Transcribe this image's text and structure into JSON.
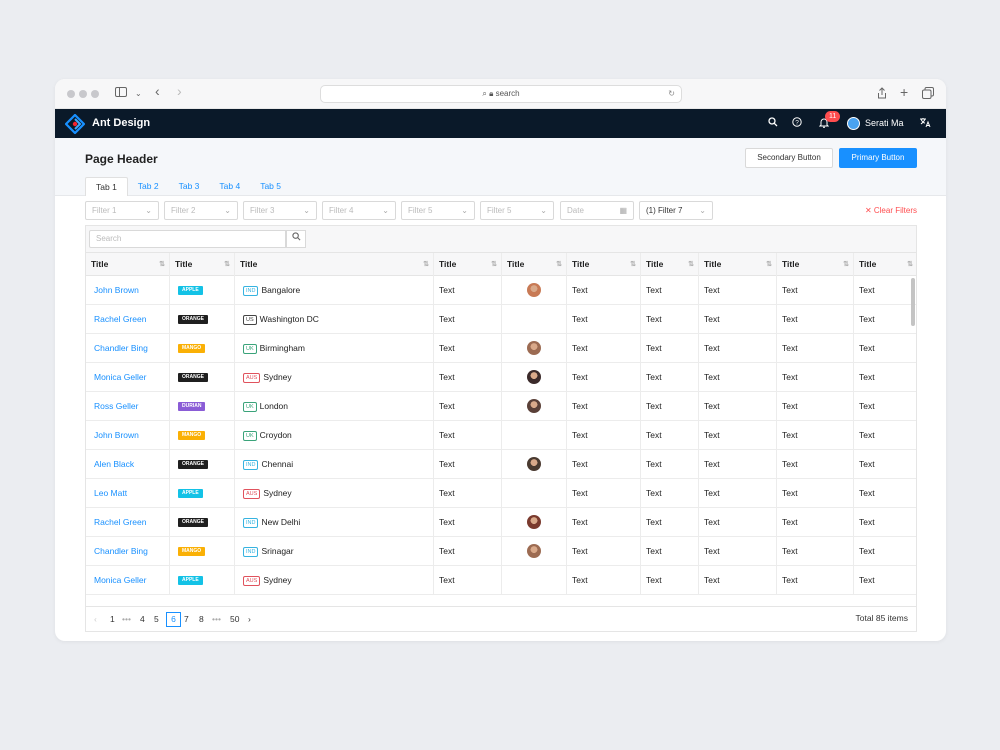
{
  "browser": {
    "url_text": "search",
    "nav_back": "‹",
    "nav_forward": "›"
  },
  "app": {
    "brand": "Ant Design",
    "notification_count": "11",
    "username": "Serati Ma",
    "colors": {
      "appbar": "#0a1929",
      "primary": "#1890ff",
      "danger": "#ff4d4f"
    }
  },
  "header": {
    "title": "Page Header",
    "secondary_button": "Secondary Button",
    "primary_button": "Primary Button",
    "tabs": [
      {
        "label": "Tab 1",
        "active": true
      },
      {
        "label": "Tab 2",
        "active": false
      },
      {
        "label": "Tab 3",
        "active": false
      },
      {
        "label": "Tab 4",
        "active": false
      },
      {
        "label": "Tab 5",
        "active": false
      }
    ]
  },
  "filters": {
    "items": [
      "Filter 1",
      "Filter 2",
      "Filter 3",
      "Filter 4",
      "Filter 5",
      "Filter 5",
      "Date",
      "(1) Filter 7"
    ],
    "clear_label": "Clear Filters"
  },
  "table": {
    "search_placeholder": "Search",
    "headers": [
      "Title",
      "Title",
      "Title",
      "Title",
      "Title",
      "Title",
      "Title",
      "Title",
      "Title",
      "Title"
    ],
    "rows": [
      {
        "name": "John Brown",
        "fruit": "APPLE",
        "country": "IND",
        "city": "Bangalore",
        "text": "Text",
        "avatar": true
      },
      {
        "name": "Rachel Green",
        "fruit": "ORANGE",
        "country": "US",
        "city": "Washington DC",
        "text": "Text",
        "avatar": false
      },
      {
        "name": "Chandler Bing",
        "fruit": "MANGO",
        "country": "UK",
        "city": "Birmingham",
        "text": "Text",
        "avatar": true
      },
      {
        "name": "Monica Geller",
        "fruit": "ORANGE",
        "country": "AUS",
        "city": "Sydney",
        "text": "Text",
        "avatar": true
      },
      {
        "name": "Ross Geller",
        "fruit": "DURIAN",
        "country": "UK",
        "city": "London",
        "text": "Text",
        "avatar": true
      },
      {
        "name": "John Brown",
        "fruit": "MANGO",
        "country": "UK",
        "city": "Croydon",
        "text": "Text",
        "avatar": false
      },
      {
        "name": "Alen Black",
        "fruit": "ORANGE",
        "country": "IND",
        "city": "Chennai",
        "text": "Text",
        "avatar": true
      },
      {
        "name": "Leo Matt",
        "fruit": "APPLE",
        "country": "AUS",
        "city": "Sydney",
        "text": "Text",
        "avatar": false
      },
      {
        "name": "Rachel Green",
        "fruit": "ORANGE",
        "country": "IND",
        "city": "New Delhi",
        "text": "Text",
        "avatar": true
      },
      {
        "name": "Chandler Bing",
        "fruit": "MANGO",
        "country": "IND",
        "city": "Srinagar",
        "text": "Text",
        "avatar": true
      },
      {
        "name": "Monica Geller",
        "fruit": "APPLE",
        "country": "AUS",
        "city": "Sydney",
        "text": "Text",
        "avatar": false
      }
    ],
    "fruit_colors": {
      "APPLE": "#13c2e6",
      "ORANGE": "#1f1f1f",
      "MANGO": "#fab005",
      "DURIAN": "#8a5cd6"
    },
    "country_colors": {
      "IND": "#36b3e0",
      "US": "#444444",
      "UK": "#3aa37a",
      "AUS": "#e0525d"
    }
  },
  "pagination": {
    "prev": "‹",
    "next": "›",
    "pages": [
      "1",
      "•••",
      "4",
      "5",
      "6",
      "7",
      "8",
      "•••",
      "50"
    ],
    "current": "6",
    "total": "Total 85 items"
  }
}
